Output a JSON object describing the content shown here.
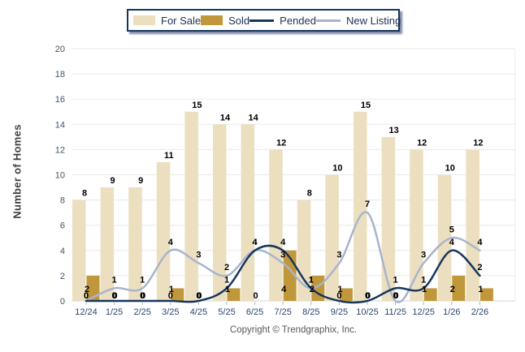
{
  "legend": {
    "items": [
      {
        "label": "For Sale",
        "type": "box",
        "color": "#ECDFC0"
      },
      {
        "label": "Sold",
        "type": "box",
        "color": "#C0973B"
      },
      {
        "label": "Pended",
        "type": "line",
        "color": "#17365D"
      },
      {
        "label": "New Listing",
        "type": "line",
        "color": "#A9B4CC"
      }
    ]
  },
  "chart_data": {
    "type": "bar+line",
    "categories": [
      "12/24",
      "1/25",
      "2/25",
      "3/25",
      "4/25",
      "5/25",
      "6/25",
      "7/25",
      "8/25",
      "9/25",
      "10/25",
      "11/25",
      "12/25",
      "1/26",
      "2/26"
    ],
    "series": [
      {
        "name": "For Sale",
        "type": "bar",
        "color": "#ECDFC0",
        "values": [
          8,
          9,
          9,
          11,
          15,
          14,
          14,
          12,
          8,
          10,
          15,
          13,
          12,
          10,
          12
        ]
      },
      {
        "name": "Sold",
        "type": "bar",
        "color": "#C0973B",
        "values": [
          2,
          0,
          0,
          1,
          0,
          1,
          0,
          4,
          2,
          1,
          0,
          0,
          1,
          2,
          1
        ]
      },
      {
        "name": "Pended",
        "type": "line",
        "color": "#17365D",
        "values": [
          0,
          0,
          0,
          0,
          0,
          1,
          4,
          4,
          1,
          0,
          0,
          1,
          1,
          4,
          2
        ]
      },
      {
        "name": "New Listing",
        "type": "line",
        "color": "#A9B4CC",
        "values": [
          0,
          1,
          1,
          4,
          3,
          2,
          4,
          3,
          1,
          3,
          7,
          0,
          3,
          5,
          4
        ]
      }
    ],
    "title": "",
    "xlabel": "",
    "ylabel": "Number of Homes",
    "ylim": [
      0,
      20
    ],
    "ytick_step": 2,
    "grid": true,
    "legend_position": "top",
    "value_labels": true,
    "label_color": "#000000",
    "ytick_color": "#44546A",
    "xtick_color": "#2B4570",
    "grid_color": "#EAEAEA",
    "baseline_color": "#D5D5D5"
  },
  "footer": {
    "copyright": "Copyright © Trendgraphix, Inc."
  }
}
